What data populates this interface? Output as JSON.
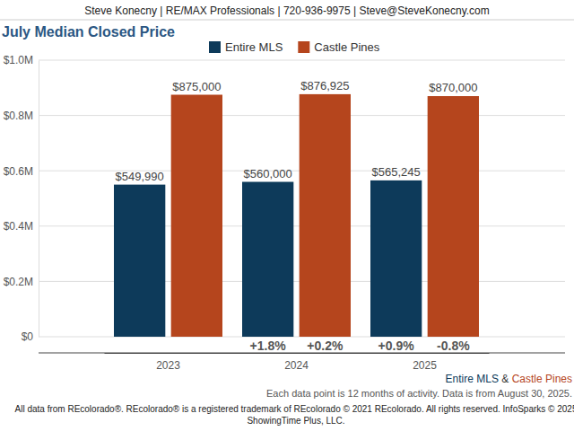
{
  "header": "Steve Konecny | RE/MAX Professionals | 720-936-9975 | Steve@SteveKonecny.com",
  "chart_data": {
    "type": "bar",
    "title": "July Median Closed Price",
    "categories": [
      "2023",
      "2024",
      "2025"
    ],
    "series": [
      {
        "name": "Entire MLS",
        "color": "#0d3a5a",
        "values": [
          549990,
          560000,
          565245
        ],
        "value_labels": [
          "$549,990",
          "$560,000",
          "$565,245"
        ],
        "changes": [
          null,
          1.8,
          0.9
        ],
        "change_labels": [
          null,
          "+1.8%",
          "+0.9%"
        ]
      },
      {
        "name": "Castle Pines",
        "color": "#b5451d",
        "values": [
          875000,
          876925,
          870000
        ],
        "value_labels": [
          "$875,000",
          "$876,925",
          "$870,000"
        ],
        "changes": [
          null,
          0.2,
          -0.8
        ],
        "change_labels": [
          null,
          "+0.2%",
          "-0.8%"
        ]
      }
    ],
    "ylim": [
      0,
      1000000
    ],
    "yticks": [
      {
        "value": 0,
        "label": "$0"
      },
      {
        "value": 200000,
        "label": "$0.2M"
      },
      {
        "value": 400000,
        "label": "$0.4M"
      },
      {
        "value": 600000,
        "label": "$0.6M"
      },
      {
        "value": 800000,
        "label": "$0.8M"
      },
      {
        "value": 1000000,
        "label": "$1.0M"
      }
    ],
    "grid": true,
    "legend": "top",
    "data_labels": true,
    "legend_joiner": " & ",
    "annotations": [
      "Each data point is 12 months of activity. Data is from August 30, 2025.",
      "All data from REcolorado®. REcolorado® is a registered trademark of REcolorado © 2021 REcolorado. All rights reserved. InfoSparks © 2025",
      "ShowingTime Plus, LLC."
    ]
  }
}
